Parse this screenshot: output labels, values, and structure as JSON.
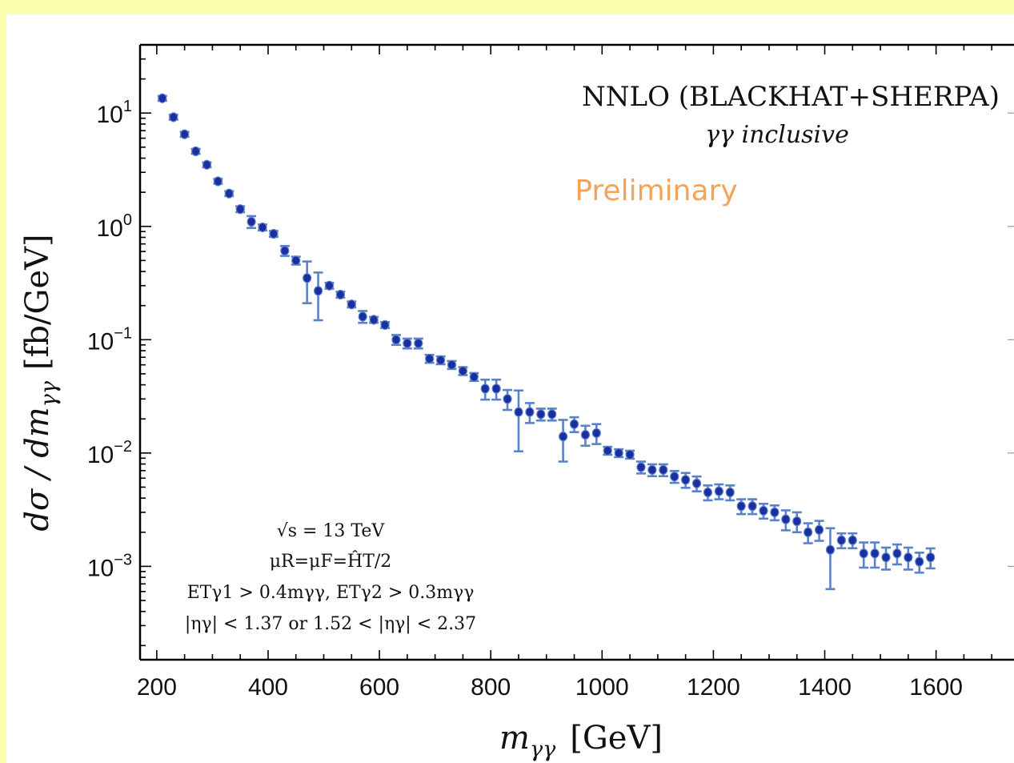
{
  "chart_data": {
    "type": "scatter",
    "title": "NNLO (BLACKHAT+SHERPA)",
    "subtitle": "γγ inclusive",
    "watermark": "Preliminary",
    "xlabel_var": "m",
    "xlabel_sub": "γγ",
    "xlabel_unit": "[GeV]",
    "ylabel_main": "dσ / dm",
    "ylabel_sub": "γγ",
    "ylabel_unit": "[fb/GeV]",
    "xlim": [
      170,
      1740
    ],
    "ylim": [
      0.00015,
      40
    ],
    "yscale": "log",
    "x_ticks": [
      "200",
      "400",
      "600",
      "800",
      "1000",
      "1200",
      "1400",
      "1600"
    ],
    "y_ticks": [
      {
        "base": "10",
        "exp": "1"
      },
      {
        "base": "10",
        "exp": "0"
      },
      {
        "base": "10",
        "exp": "−1"
      },
      {
        "base": "10",
        "exp": "−2"
      },
      {
        "base": "10",
        "exp": "−3"
      }
    ],
    "annotations": {
      "line1": "√s = 13 TeV",
      "line2": "μR=μF=ĤT/2",
      "line3": "ETγ1 > 0.4mγγ, ETγ2 > 0.3mγγ",
      "line4": "|ηγ| < 1.37 or 1.52 < |ηγ| < 2.37"
    },
    "colors": {
      "marker": "#1c2fa0",
      "errorbar": "#5b82c8",
      "watermark": "#f2a55a",
      "background": "#fdfdb0"
    },
    "series": [
      {
        "x": [
          210,
          230,
          250,
          270,
          290,
          310,
          330,
          350,
          370,
          390,
          410,
          430,
          450,
          470,
          490,
          510,
          530,
          550,
          570,
          590,
          610,
          630,
          650,
          670,
          690,
          710,
          730,
          750,
          770,
          790,
          810,
          830,
          850,
          870,
          890,
          910,
          930,
          950,
          970,
          990,
          1010,
          1030,
          1050,
          1070,
          1090,
          1110,
          1130,
          1150,
          1170,
          1190,
          1210,
          1230,
          1250,
          1270,
          1290,
          1310,
          1330,
          1350,
          1370,
          1390,
          1410,
          1430,
          1450,
          1470,
          1490,
          1510,
          1530,
          1550,
          1570,
          1590
        ],
        "y": [
          13.5,
          9.2,
          6.5,
          4.6,
          3.5,
          2.5,
          1.95,
          1.42,
          1.1,
          0.98,
          0.86,
          0.61,
          0.5,
          0.35,
          0.27,
          0.3,
          0.25,
          0.205,
          0.16,
          0.15,
          0.135,
          0.1,
          0.093,
          0.093,
          0.068,
          0.066,
          0.06,
          0.053,
          0.047,
          0.037,
          0.037,
          0.03,
          0.023,
          0.023,
          0.022,
          0.022,
          0.014,
          0.018,
          0.0145,
          0.015,
          0.0105,
          0.01,
          0.0097,
          0.0075,
          0.0071,
          0.0071,
          0.0062,
          0.0058,
          0.0054,
          0.0045,
          0.0046,
          0.0045,
          0.0034,
          0.0034,
          0.0031,
          0.003,
          0.0026,
          0.0025,
          0.002,
          0.0021,
          0.0014,
          0.0017,
          0.0017,
          0.0013,
          0.0013,
          0.0012,
          0.0013,
          0.0012,
          0.0011,
          0.0012
        ],
        "yerr_rel": [
          0.05,
          0.05,
          0.05,
          0.05,
          0.05,
          0.05,
          0.05,
          0.06,
          0.12,
          0.06,
          0.06,
          0.1,
          0.08,
          0.4,
          0.45,
          0.06,
          0.06,
          0.06,
          0.12,
          0.06,
          0.06,
          0.1,
          0.1,
          0.1,
          0.08,
          0.08,
          0.08,
          0.08,
          0.08,
          0.2,
          0.2,
          0.2,
          0.55,
          0.2,
          0.12,
          0.12,
          0.4,
          0.15,
          0.2,
          0.2,
          0.08,
          0.08,
          0.08,
          0.12,
          0.12,
          0.12,
          0.12,
          0.15,
          0.15,
          0.15,
          0.15,
          0.15,
          0.15,
          0.15,
          0.15,
          0.15,
          0.2,
          0.2,
          0.2,
          0.2,
          0.55,
          0.15,
          0.15,
          0.25,
          0.25,
          0.22,
          0.2,
          0.22,
          0.2,
          0.2
        ]
      }
    ]
  }
}
